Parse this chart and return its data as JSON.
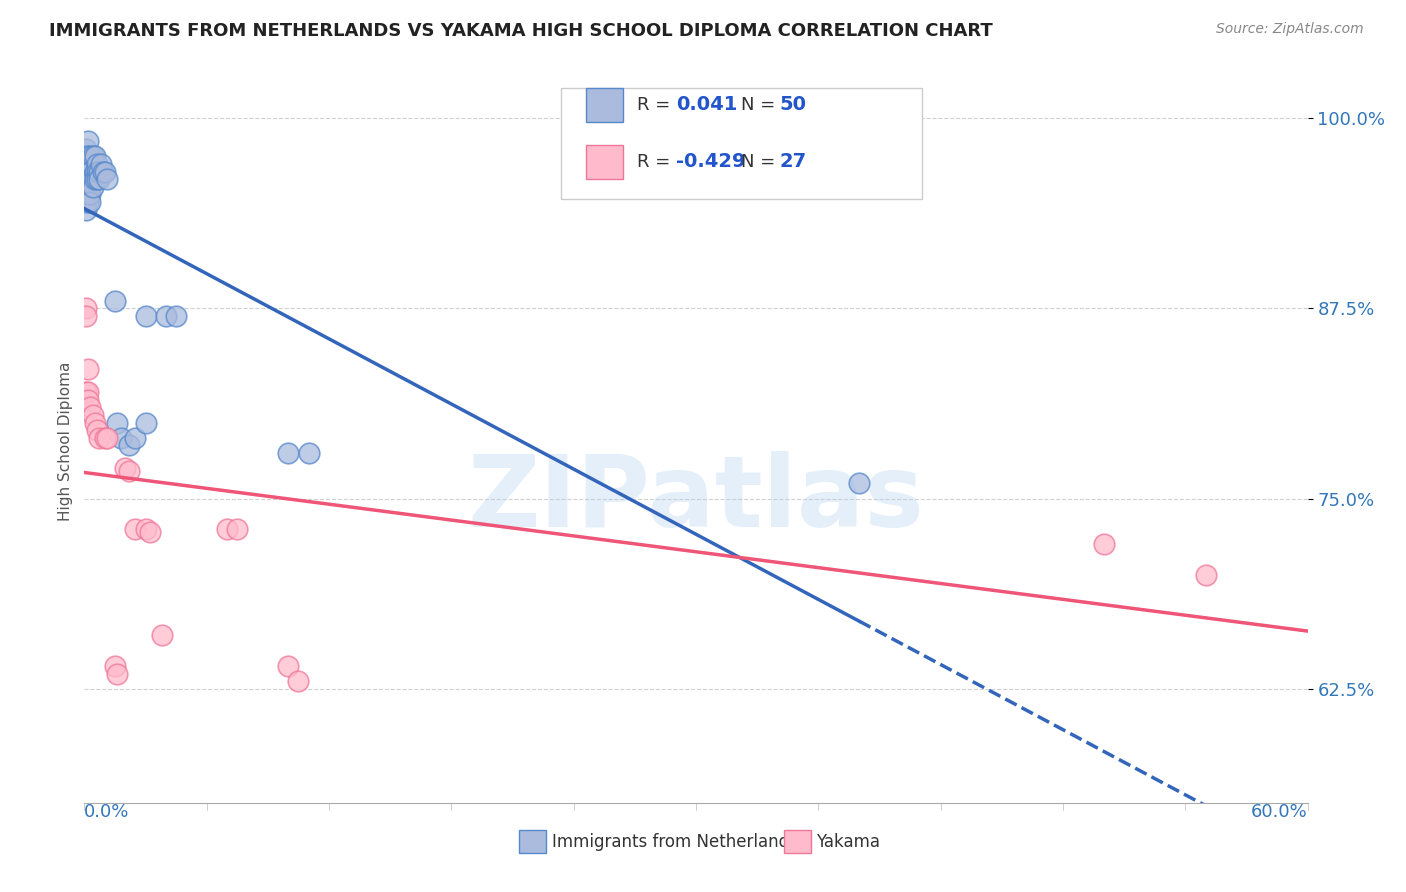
{
  "title": "IMMIGRANTS FROM NETHERLANDS VS YAKAMA HIGH SCHOOL DIPLOMA CORRELATION CHART",
  "source": "Source: ZipAtlas.com",
  "ylabel": "High School Diploma",
  "xmin": 0.0,
  "xmax": 0.6,
  "ymin": 0.55,
  "ymax": 1.025,
  "yticks": [
    0.625,
    0.75,
    0.875,
    1.0
  ],
  "ytick_labels": [
    "62.5%",
    "75.0%",
    "87.5%",
    "100.0%"
  ],
  "blue_color_fill": "#AABBDD",
  "blue_color_edge": "#5588CC",
  "pink_color_fill": "#FFBBCC",
  "pink_color_edge": "#EE7799",
  "blue_line_color": "#3366BB",
  "pink_line_color": "#EE5577",
  "blue_scatter": [
    [
      0.001,
      0.98
    ],
    [
      0.001,
      0.975
    ],
    [
      0.001,
      0.97
    ],
    [
      0.001,
      0.965
    ],
    [
      0.001,
      0.96
    ],
    [
      0.001,
      0.955
    ],
    [
      0.001,
      0.95
    ],
    [
      0.001,
      0.945
    ],
    [
      0.001,
      0.94
    ],
    [
      0.002,
      0.985
    ],
    [
      0.002,
      0.975
    ],
    [
      0.002,
      0.97
    ],
    [
      0.002,
      0.965
    ],
    [
      0.002,
      0.96
    ],
    [
      0.002,
      0.955
    ],
    [
      0.002,
      0.95
    ],
    [
      0.002,
      0.945
    ],
    [
      0.003,
      0.975
    ],
    [
      0.003,
      0.965
    ],
    [
      0.003,
      0.96
    ],
    [
      0.003,
      0.955
    ],
    [
      0.003,
      0.95
    ],
    [
      0.003,
      0.945
    ],
    [
      0.004,
      0.975
    ],
    [
      0.004,
      0.96
    ],
    [
      0.004,
      0.955
    ],
    [
      0.005,
      0.975
    ],
    [
      0.005,
      0.965
    ],
    [
      0.005,
      0.96
    ],
    [
      0.006,
      0.97
    ],
    [
      0.006,
      0.965
    ],
    [
      0.006,
      0.96
    ],
    [
      0.007,
      0.965
    ],
    [
      0.007,
      0.96
    ],
    [
      0.008,
      0.97
    ],
    [
      0.009,
      0.965
    ],
    [
      0.01,
      0.965
    ],
    [
      0.011,
      0.96
    ],
    [
      0.015,
      0.88
    ],
    [
      0.016,
      0.8
    ],
    [
      0.018,
      0.79
    ],
    [
      0.022,
      0.785
    ],
    [
      0.025,
      0.79
    ],
    [
      0.03,
      0.87
    ],
    [
      0.03,
      0.8
    ],
    [
      0.04,
      0.87
    ],
    [
      0.045,
      0.87
    ],
    [
      0.1,
      0.78
    ],
    [
      0.11,
      0.78
    ],
    [
      0.38,
      0.76
    ]
  ],
  "pink_scatter": [
    [
      0.001,
      0.875
    ],
    [
      0.001,
      0.87
    ],
    [
      0.001,
      0.82
    ],
    [
      0.002,
      0.835
    ],
    [
      0.002,
      0.82
    ],
    [
      0.002,
      0.815
    ],
    [
      0.003,
      0.81
    ],
    [
      0.004,
      0.805
    ],
    [
      0.005,
      0.8
    ],
    [
      0.006,
      0.795
    ],
    [
      0.007,
      0.79
    ],
    [
      0.01,
      0.79
    ],
    [
      0.011,
      0.79
    ],
    [
      0.015,
      0.64
    ],
    [
      0.016,
      0.635
    ],
    [
      0.02,
      0.77
    ],
    [
      0.022,
      0.768
    ],
    [
      0.025,
      0.73
    ],
    [
      0.03,
      0.73
    ],
    [
      0.032,
      0.728
    ],
    [
      0.038,
      0.66
    ],
    [
      0.07,
      0.73
    ],
    [
      0.075,
      0.73
    ],
    [
      0.5,
      0.72
    ],
    [
      0.55,
      0.7
    ],
    [
      0.1,
      0.64
    ],
    [
      0.105,
      0.63
    ]
  ],
  "watermark_text": "ZIPatlas",
  "watermark_color": "#AACCEE",
  "background_color": "#FFFFFF",
  "grid_color": "#CCCCCC",
  "legend_label_blue": "Immigrants from Netherlands",
  "legend_label_pink": "Yakama"
}
